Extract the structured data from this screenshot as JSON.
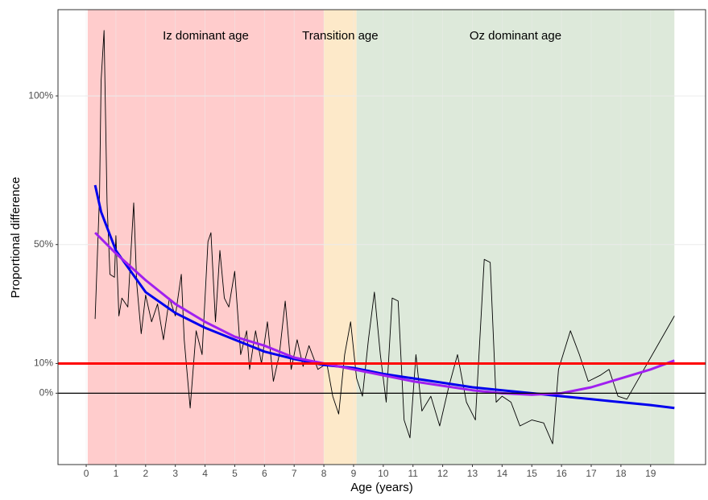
{
  "chart_data": {
    "type": "line",
    "x_label": "Age (years)",
    "y_label": "Proportional difference",
    "xlim": [
      -0.95,
      20.85
    ],
    "ylim": [
      -24,
      129
    ],
    "xticks": [
      0,
      1,
      2,
      3,
      4,
      5,
      6,
      7,
      8,
      9,
      10,
      11,
      12,
      13,
      14,
      15,
      16,
      17,
      18,
      19
    ],
    "yticks": [
      {
        "value": 0,
        "label": "0%"
      },
      {
        "value": 10,
        "label": "10%"
      },
      {
        "value": 50,
        "label": "50%"
      },
      {
        "value": 100,
        "label": "100%"
      }
    ],
    "grid": true,
    "bands": [
      {
        "label": "Iz dominant age",
        "from": 0.05,
        "to": 8.0,
        "color": "#ffcccc"
      },
      {
        "label": "Transition age",
        "from": 8.0,
        "to": 9.1,
        "color": "#fde9c9"
      },
      {
        "label": "Oz dominant age",
        "from": 9.1,
        "to": 19.8,
        "color": "#dde9da"
      }
    ],
    "hlines": [
      {
        "value": 10,
        "color": "#ff0000"
      },
      {
        "value": 0,
        "color": "#000000"
      }
    ],
    "series": [
      {
        "color": "#000000",
        "x": [
          0.3,
          0.45,
          0.5,
          0.6,
          0.7,
          0.8,
          0.95,
          1.0,
          1.1,
          1.2,
          1.4,
          1.6,
          1.7,
          1.85,
          2.0,
          2.2,
          2.4,
          2.6,
          2.8,
          3.0,
          3.2,
          3.3,
          3.5,
          3.7,
          3.9,
          4.1,
          4.2,
          4.35,
          4.5,
          4.65,
          4.8,
          5.0,
          5.2,
          5.4,
          5.5,
          5.7,
          5.9,
          6.1,
          6.3,
          6.5,
          6.7,
          6.9,
          7.1,
          7.3,
          7.5,
          7.8,
          8.1,
          8.3,
          8.5,
          8.7,
          8.9,
          9.1,
          9.3,
          9.5,
          9.7,
          9.9,
          10.1,
          10.3,
          10.5,
          10.7,
          10.9,
          11.1,
          11.3,
          11.6,
          11.9,
          12.2,
          12.5,
          12.8,
          13.1,
          13.4,
          13.6,
          13.8,
          14.0,
          14.3,
          14.6,
          15.0,
          15.4,
          15.7,
          15.9,
          16.3,
          16.6,
          16.9,
          17.3,
          17.6,
          17.9,
          18.2,
          19.8
        ],
        "values": [
          25,
          67,
          105,
          122,
          64,
          40,
          39,
          53,
          26,
          32,
          29,
          64,
          37,
          20,
          33,
          24,
          30,
          18,
          32,
          26,
          40,
          18,
          -5,
          21,
          13,
          51,
          54,
          24,
          48,
          32,
          29,
          41,
          13,
          21,
          8,
          21,
          10,
          24,
          4,
          13,
          31,
          8,
          18,
          9,
          16,
          8,
          10,
          -1,
          -7,
          13,
          24,
          5,
          -1,
          18,
          34,
          13,
          -3,
          32,
          31,
          -9,
          -15,
          13,
          -6,
          -1,
          -11,
          2,
          13,
          -3,
          -9,
          45,
          44,
          -3,
          -1,
          -3,
          -11,
          -9,
          -10,
          -17,
          8,
          21,
          13,
          4,
          6,
          8,
          -1,
          -2,
          26
        ]
      },
      {
        "color": "#0000ee",
        "x": [
          0.3,
          0.5,
          1,
          2,
          3,
          4,
          5,
          6,
          7,
          8,
          9,
          10,
          11,
          12,
          13,
          14,
          15,
          16,
          17,
          18,
          19,
          19.8
        ],
        "values": [
          70,
          61,
          48,
          34,
          27,
          22,
          18,
          14,
          11.5,
          9.5,
          8.5,
          6.5,
          5,
          3.5,
          2,
          1,
          0,
          -1,
          -2,
          -3,
          -4,
          -5
        ]
      },
      {
        "color": "#a020f0",
        "x": [
          0.3,
          1,
          2,
          3,
          4,
          5,
          6,
          7,
          8,
          9,
          10,
          11,
          12,
          13,
          14,
          15,
          16,
          17,
          18,
          19,
          19.8
        ],
        "values": [
          54,
          47,
          38,
          30,
          24,
          19,
          16,
          12,
          10,
          8,
          6,
          4,
          2.5,
          1,
          0,
          -0.5,
          0,
          2,
          5,
          8,
          11
        ]
      }
    ]
  }
}
